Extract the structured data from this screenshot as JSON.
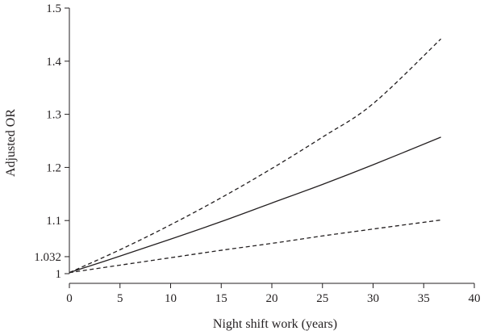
{
  "chart_data": {
    "type": "line",
    "title": "",
    "xlabel": "Night shift work (years)",
    "ylabel": "Adjusted OR",
    "xlim": [
      0,
      40
    ],
    "ylim": [
      1,
      1.5
    ],
    "xticks": [
      0,
      5,
      10,
      15,
      20,
      25,
      30,
      35,
      40
    ],
    "xtick_labels": [
      "0",
      "5",
      "10",
      "15",
      "20",
      "25",
      "30",
      "35",
      "40"
    ],
    "yticks": [
      1,
      1.032,
      1.1,
      1.2,
      1.3,
      1.4,
      1.5
    ],
    "ytick_labels": [
      "1",
      "1.032",
      "1.1",
      "1.2",
      "1.3",
      "1.4",
      "1.5"
    ],
    "grid": false,
    "legend": "none",
    "series": [
      {
        "style": "solid",
        "color": "#231f20",
        "x": [
          0,
          5,
          10,
          15,
          20,
          25,
          30,
          36.7
        ],
        "y": [
          1.002,
          1.033,
          1.065,
          1.098,
          1.133,
          1.168,
          1.205,
          1.257
        ]
      },
      {
        "style": "dashed",
        "color": "#231f20",
        "x": [
          0,
          5,
          10,
          15,
          20,
          25,
          30,
          36.7
        ],
        "y": [
          1.002,
          1.045,
          1.092,
          1.143,
          1.198,
          1.257,
          1.32,
          1.442
        ]
      },
      {
        "style": "dashed",
        "color": "#231f20",
        "x": [
          0,
          5,
          10,
          15,
          20,
          25,
          30,
          36.7
        ],
        "y": [
          1.002,
          1.016,
          1.03,
          1.044,
          1.057,
          1.071,
          1.084,
          1.101
        ]
      }
    ]
  }
}
